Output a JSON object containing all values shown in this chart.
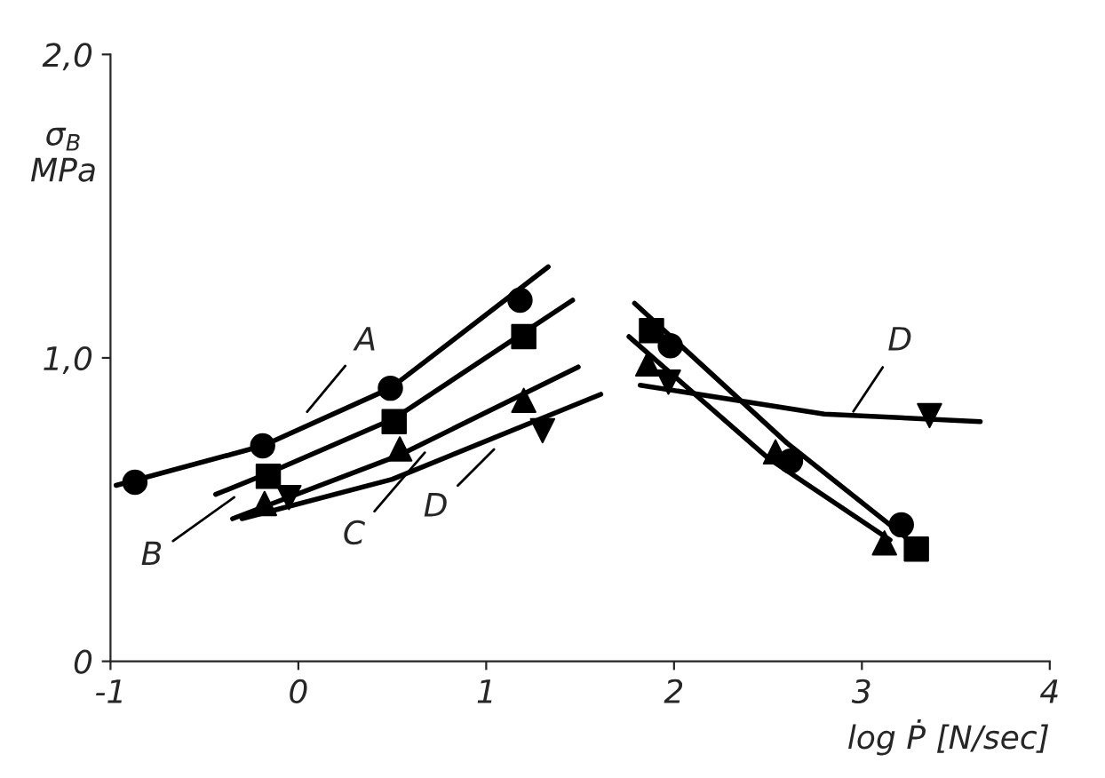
{
  "chart_data": {
    "type": "scatter",
    "xlabel": "log Ṗ [N/sec]",
    "ylabel": "σ$_{B}$\nMPa",
    "xlim": [
      -1,
      4
    ],
    "ylim": [
      0,
      2
    ],
    "xticks": [
      -1,
      0,
      1,
      2,
      3,
      4
    ],
    "yticks": [
      0,
      {
        "value": 1,
        "label": "1,0"
      },
      {
        "value": 2,
        "label": "2,0"
      }
    ],
    "grid": false,
    "legend": false,
    "series": [
      {
        "marker": "circle",
        "color": "#000000",
        "x": [
          -0.87,
          -0.19,
          0.49,
          1.18,
          1.98,
          2.62,
          3.21
        ],
        "values": [
          0.59,
          0.71,
          0.9,
          1.19,
          1.04,
          0.66,
          0.45
        ]
      },
      {
        "marker": "square",
        "color": "#000000",
        "x": [
          -0.16,
          0.51,
          1.2,
          1.88,
          3.29
        ],
        "values": [
          0.61,
          0.79,
          1.07,
          1.09,
          0.37
        ]
      },
      {
        "marker": "triangle",
        "color": "#000000",
        "x": [
          -0.18,
          0.54,
          1.2,
          1.86,
          2.54,
          3.12
        ],
        "values": [
          0.52,
          0.7,
          0.86,
          0.98,
          0.69,
          0.39
        ]
      },
      {
        "marker": "triangle_down",
        "color": "#000000",
        "x": [
          -0.05,
          1.3,
          1.97,
          3.36
        ],
        "values": [
          0.54,
          0.76,
          0.92,
          0.81
        ]
      },
      {
        "type": "line",
        "marker": "none",
        "color": "#000000",
        "x": [
          -0.97,
          -0.19,
          0.49,
          1.33
        ],
        "values": [
          0.58,
          0.71,
          0.9,
          1.3
        ]
      },
      {
        "type": "line",
        "marker": "none",
        "color": "#000000",
        "x": [
          -0.44,
          -0.16,
          0.51,
          1.46
        ],
        "values": [
          0.55,
          0.62,
          0.8,
          1.19
        ]
      },
      {
        "type": "line",
        "marker": "none",
        "color": "#000000",
        "x": [
          -0.35,
          0.54,
          1.49
        ],
        "values": [
          0.47,
          0.68,
          0.97
        ]
      },
      {
        "type": "line",
        "marker": "none",
        "color": "#000000",
        "x": [
          -0.3,
          0.5,
          1.61
        ],
        "values": [
          0.47,
          0.6,
          0.88
        ]
      },
      {
        "type": "line",
        "marker": "none",
        "color": "#000000",
        "x": [
          1.79,
          2.6,
          3.25
        ],
        "values": [
          1.18,
          0.72,
          0.4
        ]
      },
      {
        "type": "line",
        "marker": "none",
        "color": "#000000",
        "x": [
          1.76,
          2.5,
          3.15
        ],
        "values": [
          1.07,
          0.67,
          0.4
        ]
      },
      {
        "type": "line",
        "marker": "none",
        "color": "#000000",
        "x": [
          1.82,
          2.8,
          3.63
        ],
        "values": [
          0.91,
          0.815,
          0.79
        ]
      }
    ],
    "annotations": [
      {
        "text": "A",
        "x": 0.03,
        "y": 0.81
      },
      {
        "text": "B",
        "x": -0.32,
        "y": 0.55
      },
      {
        "text": "C",
        "x": 0.69,
        "y": 0.7
      },
      {
        "text": "D",
        "x": 1.06,
        "y": 0.71
      },
      {
        "text": "D",
        "x": 2.94,
        "y": 0.81
      }
    ]
  }
}
